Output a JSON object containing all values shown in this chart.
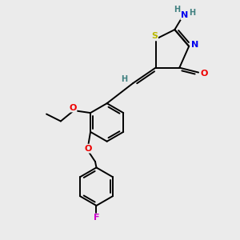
{
  "background_color": "#ebebeb",
  "atom_colors": {
    "S": "#b8b800",
    "N": "#0000ee",
    "O": "#ee0000",
    "F": "#cc00cc",
    "C": "#000000",
    "H": "#408080"
  },
  "bond_color": "#000000",
  "bond_width": 1.4
}
